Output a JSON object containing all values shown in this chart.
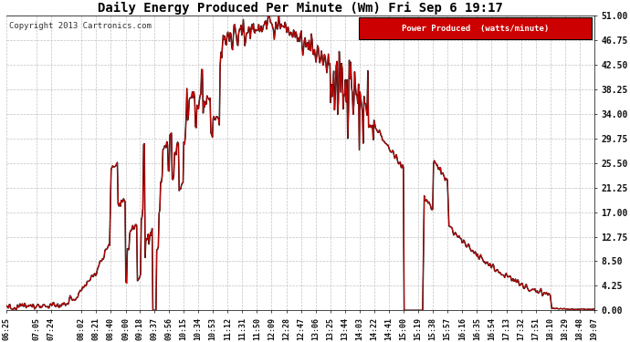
{
  "title": "Daily Energy Produced Per Minute (Wm) Fri Sep 6 19:17",
  "copyright": "Copyright 2013 Cartronics.com",
  "legend_label": "Power Produced  (watts/minute)",
  "legend_bg": "#cc0000",
  "legend_text_color": "#ffffff",
  "line_color": "#cc0000",
  "background_color": "#ffffff",
  "grid_color": "#bbbbbb",
  "ylim": [
    0,
    51.0
  ],
  "yticks": [
    0.0,
    4.25,
    8.5,
    12.75,
    17.0,
    21.25,
    25.5,
    29.75,
    34.0,
    38.25,
    42.5,
    46.75,
    51.0
  ],
  "ytick_labels": [
    "0.00",
    "4.25",
    "8.50",
    "12.75",
    "17.00",
    "21.25",
    "25.50",
    "29.75",
    "34.00",
    "38.25",
    "42.50",
    "46.75",
    "51.00"
  ],
  "xtick_labels": [
    "06:25",
    "07:05",
    "07:24",
    "08:02",
    "08:21",
    "08:40",
    "09:00",
    "09:18",
    "09:37",
    "09:56",
    "10:15",
    "10:34",
    "10:53",
    "11:12",
    "11:31",
    "11:50",
    "12:09",
    "12:28",
    "12:47",
    "13:06",
    "13:25",
    "13:44",
    "14:03",
    "14:22",
    "14:41",
    "15:00",
    "15:19",
    "15:38",
    "15:57",
    "16:16",
    "16:35",
    "16:54",
    "17:13",
    "17:32",
    "17:51",
    "18:10",
    "18:29",
    "18:48",
    "19:07"
  ]
}
